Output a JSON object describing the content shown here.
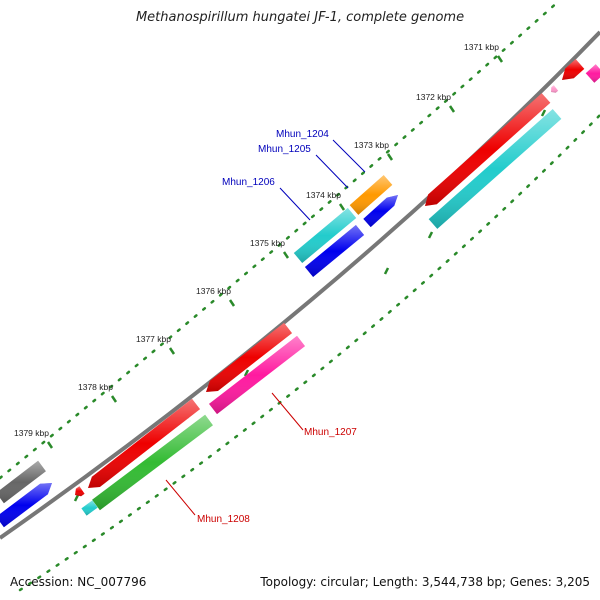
{
  "title": "Methanospirillum hungatei JF-1, complete genome",
  "scale": {
    "tick_labels": [
      "1371 kbp",
      "1372 kbp",
      "1373 kbp",
      "1374 kbp",
      "1375 kbp",
      "1376 kbp",
      "1377 kbp",
      "1378 kbp",
      "1379 kbp"
    ]
  },
  "genes": {
    "blue_labels": [
      "Mhun_1204",
      "Mhun_1205",
      "Mhun_1206"
    ],
    "red_labels": [
      "Mhun_1207",
      "Mhun_1208"
    ]
  },
  "colors": {
    "red": "#ee0000",
    "cyan": "#22cccc",
    "blue": "#0000ee",
    "orange": "#ff9900",
    "magenta": "#ff1aa0",
    "green": "#33bb33",
    "gray": "#666666",
    "pink": "#ff99cc",
    "tick_green": "#2a8a2a",
    "label_blue": "#0000bb",
    "label_red": "#cc0000",
    "backbone": "#777777"
  },
  "footer": {
    "accession": "Accession: NC_007796",
    "topology": "Topology: circular; Length: 3,544,738 bp; Genes: 3,205"
  }
}
